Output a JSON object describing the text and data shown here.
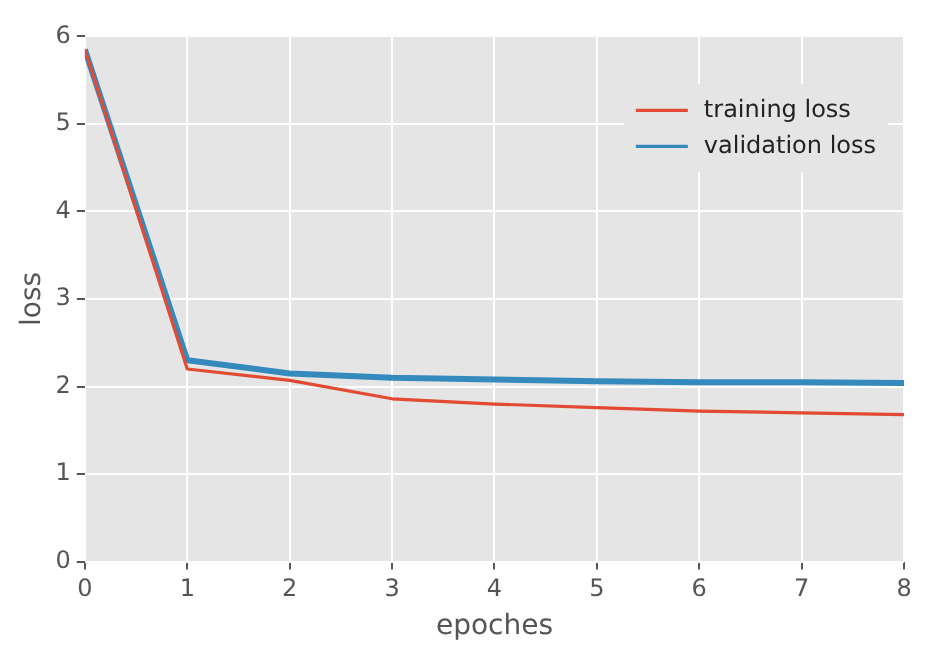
{
  "chart_data": {
    "type": "line",
    "xlabel": "epoches",
    "ylabel": "loss",
    "x": [
      0,
      1,
      2,
      3,
      4,
      5,
      6,
      7,
      8
    ],
    "series": [
      {
        "name": "training loss",
        "color": "#e24a33",
        "values": [
          5.85,
          2.2,
          2.07,
          1.86,
          1.8,
          1.76,
          1.72,
          1.7,
          1.68
        ]
      },
      {
        "name": "validation loss",
        "color": "#348abd",
        "values": [
          5.85,
          2.3,
          2.15,
          2.1,
          2.08,
          2.06,
          2.05,
          2.05,
          2.04
        ]
      }
    ],
    "xlim": [
      0,
      8
    ],
    "xticks": [
      0,
      1,
      2,
      3,
      4,
      5,
      6,
      7,
      8
    ],
    "ylim": [
      0,
      6
    ],
    "yticks": [
      0,
      1,
      2,
      3,
      4,
      5,
      6
    ],
    "grid": true,
    "legend": "top right",
    "marker": "none",
    "line_style": "solid"
  }
}
